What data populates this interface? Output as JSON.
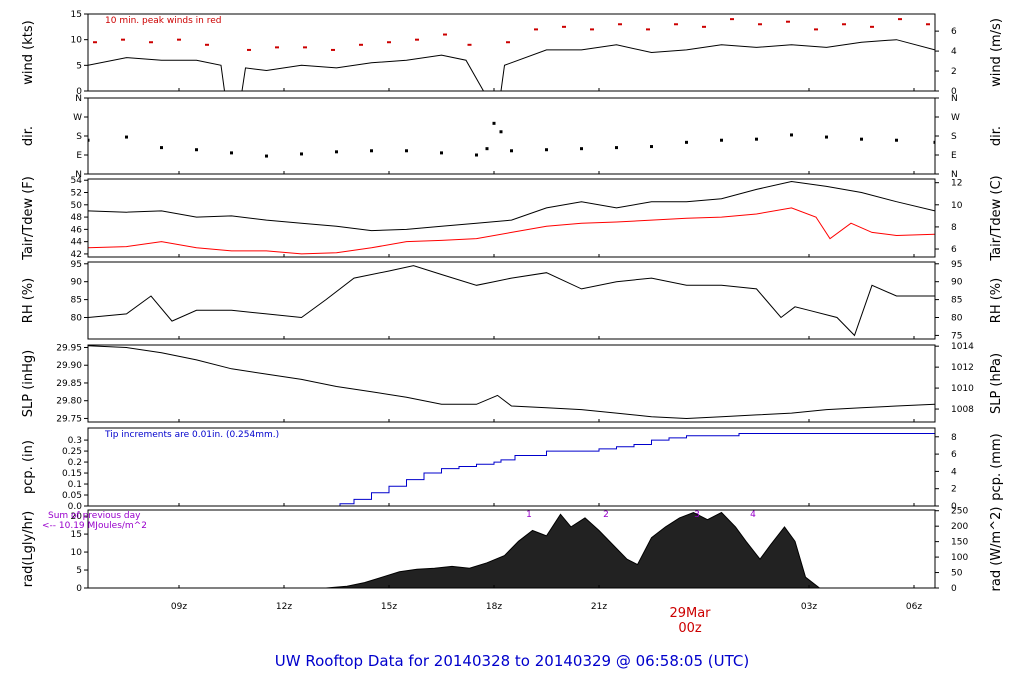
{
  "figure": {
    "title": "UW Rooftop Data for 20140328  to  20140329 @ 06:58:05  (UTC)",
    "title_color": "#0000cc",
    "date_label": "29Mar",
    "date_sublabel": "00z",
    "date_color": "#cc0000"
  },
  "time_axis": {
    "range_hours": [
      6.4,
      30.6
    ],
    "ticks": [
      {
        "hour": 9,
        "label": "09z"
      },
      {
        "hour": 12,
        "label": "12z"
      },
      {
        "hour": 15,
        "label": "15z"
      },
      {
        "hour": 18,
        "label": "18z"
      },
      {
        "hour": 21,
        "label": "21z"
      },
      {
        "hour": 27,
        "label": "03z"
      },
      {
        "hour": 30,
        "label": "06z"
      }
    ],
    "date_mark_hour": 24
  },
  "chart_data": [
    {
      "id": "wind",
      "type": "line",
      "ylabel": "wind (kts)",
      "ylabel_right": "wind (m/s)",
      "ylim": [
        0,
        15
      ],
      "left_ticks": [
        {
          "v": 0,
          "label": "0"
        },
        {
          "v": 5,
          "label": "5"
        },
        {
          "v": 10,
          "label": "10"
        },
        {
          "v": 15,
          "label": "15"
        }
      ],
      "right_ticks": [
        {
          "v": 0,
          "label": "0"
        },
        {
          "v": 3.888,
          "label": "2"
        },
        {
          "v": 7.776,
          "label": "4"
        },
        {
          "v": 11.664,
          "label": "6"
        }
      ],
      "annotation": "10 min. peak winds in red",
      "annotation_color": "#cc0000",
      "series": [
        {
          "name": "wind speed",
          "color": "#000000",
          "x": [
            6.4,
            7.5,
            8.5,
            9.5,
            10.2,
            10.3,
            10.8,
            10.9,
            11.5,
            12.5,
            13.5,
            14.5,
            15.5,
            16.5,
            17.2,
            17.7,
            17.8,
            18.2,
            18.3,
            19.5,
            20.5,
            21.5,
            22.5,
            23.5,
            24.5,
            25.5,
            26.5,
            27.5,
            28.5,
            29.5,
            30.6
          ],
          "y": [
            5,
            6.5,
            6,
            6,
            5,
            0,
            0,
            4.5,
            4,
            5,
            4.5,
            5.5,
            6,
            7,
            6,
            0,
            0,
            0,
            5,
            8,
            8,
            9,
            7.5,
            8,
            9,
            8.5,
            9,
            8.5,
            9.5,
            10,
            8
          ]
        },
        {
          "name": "10 min. peak winds",
          "color": "#cc0000",
          "style": "dashes",
          "x": [
            6.6,
            7.4,
            8.2,
            9.0,
            9.8,
            11.0,
            11.8,
            12.6,
            13.4,
            14.2,
            15.0,
            15.8,
            16.6,
            17.3,
            18.4,
            19.2,
            20.0,
            20.8,
            21.6,
            22.4,
            23.2,
            24.0,
            24.8,
            25.6,
            26.4,
            27.2,
            28.0,
            28.8,
            29.6,
            30.4
          ],
          "y": [
            9.5,
            10,
            9.5,
            10,
            9,
            8,
            8.5,
            8.5,
            8,
            9,
            9.5,
            10,
            11,
            9,
            9.5,
            12,
            12.5,
            12,
            13,
            12,
            13,
            12.5,
            14,
            13,
            13.5,
            12,
            13,
            12.5,
            14,
            13
          ]
        }
      ]
    },
    {
      "id": "dir",
      "type": "scatter",
      "ylabel": "dir.",
      "ylabel_right": "dir.",
      "ylim": [
        0,
        360
      ],
      "left_ticks": [
        {
          "v": 0,
          "label": "N"
        },
        {
          "v": 90,
          "label": "E"
        },
        {
          "v": 180,
          "label": "S"
        },
        {
          "v": 270,
          "label": "W"
        },
        {
          "v": 360,
          "label": "N"
        }
      ],
      "right_ticks": [
        {
          "v": 0,
          "label": "N"
        },
        {
          "v": 90,
          "label": "E"
        },
        {
          "v": 180,
          "label": "S"
        },
        {
          "v": 270,
          "label": "W"
        },
        {
          "v": 360,
          "label": "N"
        }
      ],
      "series": [
        {
          "name": "wind direction",
          "color": "#000000",
          "x": [
            6.4,
            7.5,
            8.5,
            9.5,
            10.5,
            11.5,
            12.5,
            13.5,
            14.5,
            15.5,
            16.5,
            17.5,
            17.8,
            18,
            18.2,
            18.5,
            19.5,
            20.5,
            21.5,
            22.5,
            23.5,
            24.5,
            25.5,
            26.5,
            27.5,
            28.5,
            29.5,
            30.6
          ],
          "y": [
            160,
            175,
            125,
            115,
            100,
            85,
            95,
            105,
            110,
            110,
            100,
            90,
            120,
            240,
            200,
            110,
            115,
            120,
            125,
            130,
            150,
            160,
            165,
            185,
            175,
            165,
            160,
            150
          ]
        }
      ]
    },
    {
      "id": "temp",
      "type": "line",
      "ylabel": "Tair/Tdew (F)",
      "ylabel_right": "Tair/Tdew (C)",
      "ylim": [
        41.5,
        54.2
      ],
      "left_ticks": [
        {
          "v": 42,
          "label": "42"
        },
        {
          "v": 44,
          "label": "44"
        },
        {
          "v": 46,
          "label": "46"
        },
        {
          "v": 48,
          "label": "48"
        },
        {
          "v": 50,
          "label": "50"
        },
        {
          "v": 52,
          "label": "52"
        },
        {
          "v": 54,
          "label": "54"
        }
      ],
      "right_ticks": [
        {
          "v": 42.8,
          "label": "6"
        },
        {
          "v": 46.4,
          "label": "8"
        },
        {
          "v": 50,
          "label": "10"
        },
        {
          "v": 53.6,
          "label": "12"
        }
      ],
      "series": [
        {
          "name": "Tair",
          "color": "#000000",
          "x": [
            6.4,
            7.5,
            8.5,
            9.5,
            10.5,
            11.5,
            12.5,
            13.5,
            14.5,
            15.5,
            16.5,
            17.5,
            18.5,
            19.5,
            20.5,
            21.5,
            22.5,
            23.5,
            24.5,
            25.5,
            26.5,
            27.5,
            28.5,
            29.5,
            30.6
          ],
          "y": [
            49,
            48.8,
            49,
            48,
            48.2,
            47.5,
            47,
            46.5,
            45.8,
            46,
            46.5,
            47,
            47.5,
            49.5,
            50.5,
            49.5,
            50.5,
            50.5,
            51,
            52.5,
            53.8,
            53,
            52,
            50.5,
            49
          ]
        },
        {
          "name": "Tdew",
          "color": "#ff0000",
          "x": [
            6.4,
            7.5,
            8.5,
            9.5,
            10.5,
            11.5,
            12.5,
            13.5,
            14.5,
            15.5,
            16.5,
            17.5,
            18.5,
            19.5,
            20.5,
            21.5,
            22.5,
            23.5,
            24.5,
            25.5,
            26.5,
            27.2,
            27.6,
            28.2,
            28.8,
            29.5,
            30.6
          ],
          "y": [
            43,
            43.2,
            44,
            43,
            42.5,
            42.5,
            42,
            42.2,
            43,
            44,
            44.2,
            44.5,
            45.5,
            46.5,
            47,
            47.2,
            47.5,
            47.8,
            48,
            48.5,
            49.5,
            48,
            44.5,
            47,
            45.5,
            45,
            45.2
          ]
        }
      ]
    },
    {
      "id": "rh",
      "type": "line",
      "ylabel": "RH (%)",
      "ylabel_right": "RH (%)",
      "ylim": [
        74,
        95.5
      ],
      "left_ticks": [
        {
          "v": 80,
          "label": "80"
        },
        {
          "v": 85,
          "label": "85"
        },
        {
          "v": 90,
          "label": "90"
        },
        {
          "v": 95,
          "label": "95"
        }
      ],
      "right_ticks": [
        {
          "v": 75,
          "label": "75"
        },
        {
          "v": 80,
          "label": "80"
        },
        {
          "v": 85,
          "label": "85"
        },
        {
          "v": 90,
          "label": "90"
        },
        {
          "v": 95,
          "label": "95"
        }
      ],
      "series": [
        {
          "name": "RH",
          "color": "#000000",
          "x": [
            6.4,
            7.5,
            8.2,
            8.8,
            9.5,
            10.5,
            11.5,
            12.5,
            13.2,
            14,
            15,
            15.7,
            16.5,
            17.5,
            18,
            18.5,
            19.5,
            20.5,
            21.5,
            22.5,
            23.5,
            24.5,
            25.5,
            26.2,
            26.6,
            27,
            27.8,
            28.3,
            28.8,
            29.5,
            30.6
          ],
          "y": [
            80,
            81,
            86,
            79,
            82,
            82,
            81,
            80,
            85,
            91,
            93,
            94.5,
            92,
            89,
            90,
            91,
            92.5,
            88,
            90,
            91,
            89,
            89,
            88,
            80,
            83,
            82,
            80,
            75,
            89,
            86,
            86
          ]
        }
      ]
    },
    {
      "id": "slp",
      "type": "line",
      "ylabel": "SLP (inHg)",
      "ylabel_right": "SLP (hPa)",
      "ylim": [
        29.74,
        29.957
      ],
      "left_ticks": [
        {
          "v": 29.75,
          "label": "29.75"
        },
        {
          "v": 29.8,
          "label": "29.80"
        },
        {
          "v": 29.85,
          "label": "29.85"
        },
        {
          "v": 29.9,
          "label": "29.90"
        },
        {
          "v": 29.95,
          "label": "29.95"
        }
      ],
      "right_ticks": [
        {
          "v": 29.7765,
          "label": "1008"
        },
        {
          "v": 29.8356,
          "label": "1010"
        },
        {
          "v": 29.8946,
          "label": "1012"
        },
        {
          "v": 29.9537,
          "label": "1014"
        }
      ],
      "series": [
        {
          "name": "SLP",
          "color": "#000000",
          "x": [
            6.4,
            7.5,
            8.5,
            9.5,
            10.5,
            11.5,
            12.5,
            13.5,
            14.5,
            15.5,
            16.5,
            17.5,
            18.1,
            18.5,
            19.5,
            20.5,
            21.5,
            22.5,
            23.5,
            24.5,
            25.5,
            26.5,
            27.5,
            28.5,
            29.5,
            30.6
          ],
          "y": [
            29.955,
            29.95,
            29.935,
            29.915,
            29.89,
            29.875,
            29.86,
            29.84,
            29.825,
            29.81,
            29.79,
            29.79,
            29.815,
            29.785,
            29.78,
            29.775,
            29.765,
            29.755,
            29.75,
            29.755,
            29.76,
            29.765,
            29.775,
            29.78,
            29.785,
            29.79
          ]
        }
      ]
    },
    {
      "id": "pcp",
      "type": "line",
      "ylabel": "pcp. (in)",
      "ylabel_right": "pcp. (mm)",
      "ylim": [
        0,
        0.355
      ],
      "left_ticks": [
        {
          "v": 0,
          "label": "0.0"
        },
        {
          "v": 0.05,
          "label": "0.05"
        },
        {
          "v": 0.1,
          "label": "0.1"
        },
        {
          "v": 0.15,
          "label": "0.15"
        },
        {
          "v": 0.2,
          "label": "0.2"
        },
        {
          "v": 0.25,
          "label": "0.25"
        },
        {
          "v": 0.3,
          "label": "0.3"
        }
      ],
      "right_ticks": [
        {
          "v": 0,
          "label": "0"
        },
        {
          "v": 0.0787,
          "label": "2"
        },
        {
          "v": 0.1575,
          "label": "4"
        },
        {
          "v": 0.2362,
          "label": "6"
        },
        {
          "v": 0.315,
          "label": "8"
        }
      ],
      "annotation": "Tip increments are 0.01in. (0.254mm.)",
      "annotation_color": "#0000cc",
      "series": [
        {
          "name": "accumulated precipitation",
          "color": "#0000cc",
          "step": true,
          "x": [
            6.4,
            13.2,
            13.6,
            14,
            14.5,
            15,
            15.5,
            16,
            16.5,
            17,
            17.5,
            18,
            18.2,
            18.6,
            19.5,
            20.5,
            21,
            21.5,
            22,
            22.5,
            23,
            23.5,
            24,
            25,
            26,
            27,
            28,
            29,
            30.6
          ],
          "y": [
            0,
            0,
            0.01,
            0.03,
            0.06,
            0.09,
            0.12,
            0.15,
            0.17,
            0.18,
            0.19,
            0.2,
            0.21,
            0.23,
            0.25,
            0.25,
            0.26,
            0.27,
            0.28,
            0.3,
            0.31,
            0.32,
            0.32,
            0.33,
            0.33,
            0.33,
            0.33,
            0.33,
            0.33
          ]
        }
      ]
    },
    {
      "id": "rad",
      "type": "area",
      "ylabel": "rad(Lgly/hr)",
      "ylabel_right": "rad (W/m^2)",
      "ylim": [
        0,
        21.7
      ],
      "left_ticks": [
        {
          "v": 0,
          "label": "0"
        },
        {
          "v": 5,
          "label": "5"
        },
        {
          "v": 10,
          "label": "10"
        },
        {
          "v": 15,
          "label": "15"
        },
        {
          "v": 20,
          "label": "20"
        }
      ],
      "right_ticks": [
        {
          "v": 0,
          "label": "0"
        },
        {
          "v": 4.3,
          "label": "50"
        },
        {
          "v": 8.6,
          "label": "100"
        },
        {
          "v": 12.9,
          "label": "150"
        },
        {
          "v": 17.2,
          "label": "200"
        },
        {
          "v": 21.5,
          "label": "250"
        }
      ],
      "annotations": [
        {
          "text": "Sum of previous day",
          "color": "#9900cc"
        },
        {
          "text": "<-- 10.19 MJoules/m^2",
          "color": "#9900cc"
        }
      ],
      "marks": [
        {
          "hour": 19,
          "label": "1",
          "color": "#9900cc"
        },
        {
          "hour": 21.2,
          "label": "2",
          "color": "#9900cc"
        },
        {
          "hour": 23.8,
          "label": "3",
          "color": "#9900cc"
        },
        {
          "hour": 25.4,
          "label": "4",
          "color": "#9900cc"
        }
      ],
      "series": [
        {
          "name": "solar radiation",
          "color": "#000000",
          "fill": "#222222",
          "x": [
            6.4,
            13.2,
            13.8,
            14.3,
            14.8,
            15.3,
            15.8,
            16.3,
            16.8,
            17.3,
            17.8,
            18.3,
            18.7,
            19.1,
            19.5,
            19.9,
            20.2,
            20.6,
            21,
            21.4,
            21.8,
            22.1,
            22.5,
            22.9,
            23.3,
            23.7,
            24.1,
            24.5,
            24.9,
            25.2,
            25.6,
            25.9,
            26.3,
            26.6,
            26.9,
            27.3,
            30.6
          ],
          "y": [
            0,
            0,
            0.5,
            1.5,
            3,
            4.5,
            5.2,
            5.5,
            6,
            5.5,
            7,
            9,
            13,
            16,
            14.5,
            20.5,
            17,
            19.5,
            16,
            12,
            8,
            6.5,
            14,
            17,
            19.5,
            21,
            19,
            21,
            17,
            13,
            8,
            12,
            17,
            13,
            3,
            0,
            0
          ]
        }
      ]
    }
  ]
}
